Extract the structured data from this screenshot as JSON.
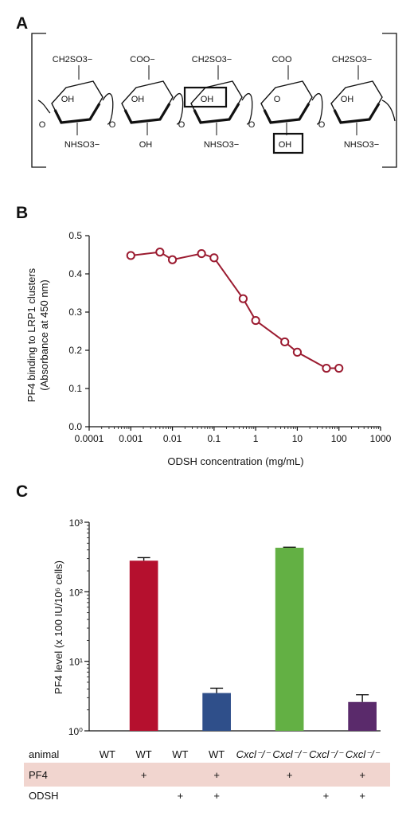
{
  "panels": {
    "a": "A",
    "b": "B",
    "c": "C"
  },
  "structure": {
    "units": [
      {
        "top": "CH2SO3−",
        "ring_oh": "OH",
        "bottom": "NHSO3−",
        "boxed": false
      },
      {
        "top": "COO−",
        "ring_oh": "OH",
        "bottom": "OH",
        "boxed": false
      },
      {
        "top": "CH2SO3−",
        "ring_oh": "OH",
        "bottom": "NHSO3−",
        "boxed": true
      },
      {
        "top": "COO",
        "ring_oh": "O",
        "bottom": "OH",
        "boxed": true
      },
      {
        "top": "CH2SO3−",
        "ring_oh": "OH",
        "bottom": "NHSO3−",
        "boxed": false
      }
    ]
  },
  "chart_data": [
    {
      "type": "line",
      "ylabel": "PF4 binding to LRP1 clusters (Absorbance at 450 nm)",
      "xlabel": "ODSH concentration (mg/mL)",
      "x_scale": "log",
      "xlim": [
        0.0001,
        1000
      ],
      "ylim": [
        0.0,
        0.5
      ],
      "x_ticks": [
        "0.0001",
        "0.001",
        "0.01",
        "0.1",
        "1",
        "10",
        "100",
        "1000"
      ],
      "y_ticks": [
        "0.0",
        "0.1",
        "0.2",
        "0.3",
        "0.4",
        "0.5"
      ],
      "series": [
        {
          "color": "#9b1b30",
          "x": [
            0.001,
            0.005,
            0.01,
            0.05,
            0.1,
            0.5,
            1,
            5,
            10,
            50,
            100
          ],
          "y": [
            0.448,
            0.457,
            0.437,
            0.453,
            0.442,
            0.335,
            0.278,
            0.222,
            0.195,
            0.153,
            0.153
          ]
        }
      ]
    },
    {
      "type": "bar",
      "y_scale": "log",
      "ylabel": "PF4 level (x 100 IU/10⁶ cells)",
      "ylim": [
        1,
        1000
      ],
      "y_ticks": [
        "10⁰",
        "10¹",
        "10²",
        "10³"
      ],
      "categories": [
        "WT",
        "WT",
        "WT",
        "WT",
        "Cxcl⁻/⁻",
        "Cxcl⁻/⁻",
        "Cxcl⁻/⁻",
        "Cxcl⁻/⁻"
      ],
      "values": [
        null,
        280,
        null,
        3.5,
        null,
        430,
        null,
        2.6
      ],
      "errors": [
        null,
        30,
        null,
        0.6,
        null,
        8,
        null,
        0.7
      ],
      "colors": [
        "#ffffff",
        "#b5102e",
        "#ffffff",
        "#2f4f8a",
        "#ffffff",
        "#63b044",
        "#ffffff",
        "#5a2a6b"
      ],
      "rows": {
        "animal": {
          "label": "animal",
          "values": [
            "WT",
            "WT",
            "WT",
            "WT",
            "Cxcl⁻/⁻",
            "Cxcl⁻/⁻",
            "Cxcl⁻/⁻",
            "Cxcl⁻/⁻"
          ]
        },
        "pf4": {
          "label": "PF4",
          "values": [
            "",
            "+",
            "",
            "+",
            "",
            "+",
            "",
            "+"
          ],
          "shade": "#f1d5cf"
        },
        "odsh": {
          "label": "ODSH",
          "values": [
            "",
            "",
            "+",
            "+",
            "",
            "",
            "+",
            "+"
          ]
        }
      }
    }
  ]
}
